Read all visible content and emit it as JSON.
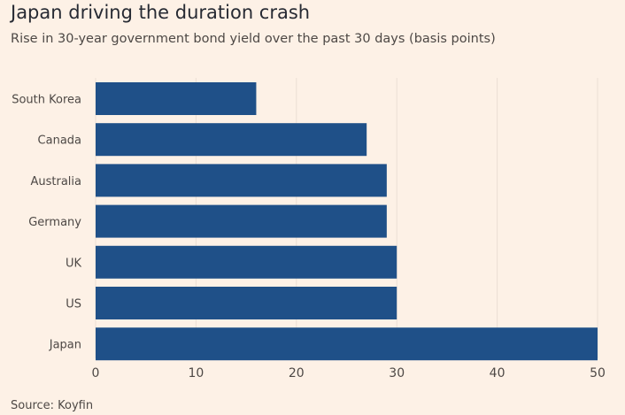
{
  "chart_data": {
    "type": "bar",
    "orientation": "horizontal",
    "title": "Japan driving the duration crash",
    "subtitle": "Rise in 30-year government bond yield over the past 30 days (basis points)",
    "source": "Source: Koyfin",
    "categories": [
      "South Korea",
      "Canada",
      "Australia",
      "Germany",
      "UK",
      "US",
      "Japan"
    ],
    "values": [
      16,
      27,
      29,
      29,
      30,
      30,
      50
    ],
    "xlabel": "",
    "ylabel": "",
    "xlim": [
      0,
      50
    ],
    "xticks": [
      0,
      10,
      20,
      30,
      40,
      50
    ],
    "grid": true,
    "colors": {
      "bar": "#1f5088",
      "background": "#fdf1e6",
      "grid": "#ebdfd4"
    }
  }
}
